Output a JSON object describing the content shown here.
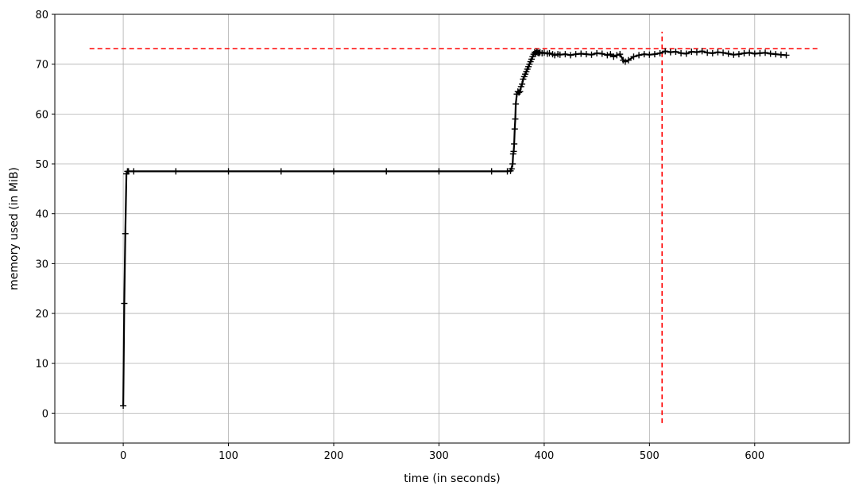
{
  "chart_data": {
    "type": "line",
    "title": "",
    "xlabel": "time (in seconds)",
    "ylabel": "memory used (in MiB)",
    "xlim": [
      -65,
      690
    ],
    "ylim": [
      -6,
      80
    ],
    "xticks": [
      0,
      100,
      200,
      300,
      400,
      500,
      600
    ],
    "yticks": [
      0,
      10,
      20,
      30,
      40,
      50,
      60,
      70,
      80
    ],
    "grid": true,
    "series": [
      {
        "name": "",
        "color": "#000000",
        "marker": "+",
        "x": [
          0,
          1,
          2,
          3,
          4,
          5,
          10,
          50,
          100,
          150,
          200,
          250,
          300,
          350,
          365,
          368,
          369,
          370,
          370.5,
          371,
          371.5,
          372,
          372.5,
          373,
          374,
          375,
          376,
          377,
          378,
          379,
          380,
          381,
          382,
          383,
          384,
          385,
          386,
          387,
          388,
          389,
          390,
          391,
          392,
          393,
          394,
          395,
          396,
          398,
          400,
          403,
          405,
          408,
          410,
          413,
          415,
          420,
          425,
          430,
          435,
          440,
          445,
          450,
          455,
          460,
          463,
          466,
          469,
          472,
          475,
          477,
          480,
          485,
          490,
          495,
          500,
          505,
          510,
          515,
          520,
          525,
          530,
          535,
          540,
          545,
          550,
          555,
          560,
          565,
          570,
          575,
          580,
          585,
          590,
          595,
          600,
          605,
          610,
          615,
          620,
          625,
          630
        ],
        "y": [
          1.5,
          22,
          36,
          48,
          48.5,
          48.5,
          48.5,
          48.5,
          48.5,
          48.5,
          48.5,
          48.5,
          48.5,
          48.5,
          48.5,
          48.6,
          49,
          50,
          52,
          52.5,
          54,
          57,
          59,
          62,
          64,
          64.5,
          64.3,
          64.5,
          65.5,
          66,
          67,
          67.5,
          68,
          68.5,
          69,
          69.5,
          70,
          70.5,
          71,
          71.5,
          72,
          72.4,
          72.2,
          72.5,
          72.3,
          72.2,
          72.4,
          72.2,
          72.3,
          72.1,
          72.2,
          72,
          71.8,
          72,
          71.9,
          72,
          71.8,
          72,
          72.1,
          72,
          71.9,
          72.2,
          72.1,
          71.8,
          72,
          71.5,
          71.8,
          72,
          70.8,
          70.5,
          70.8,
          71.5,
          71.8,
          72,
          71.9,
          72,
          72.2,
          72.6,
          72.4,
          72.5,
          72.2,
          72.1,
          72.5,
          72.4,
          72.6,
          72.3,
          72.2,
          72.4,
          72.3,
          72.1,
          71.9,
          72,
          72.2,
          72.3,
          72.1,
          72.2,
          72.3,
          72.1,
          72,
          71.9,
          71.8
        ]
      }
    ],
    "reference_lines": [
      {
        "orientation": "horizontal",
        "y": 73.1,
        "x_from": -32,
        "x_to": 660,
        "color": "#ff0000",
        "style": "dashed"
      },
      {
        "orientation": "vertical",
        "x": 512,
        "y_from": -2,
        "y_to": 76.5,
        "color": "#ff0000",
        "style": "dashed"
      }
    ]
  }
}
